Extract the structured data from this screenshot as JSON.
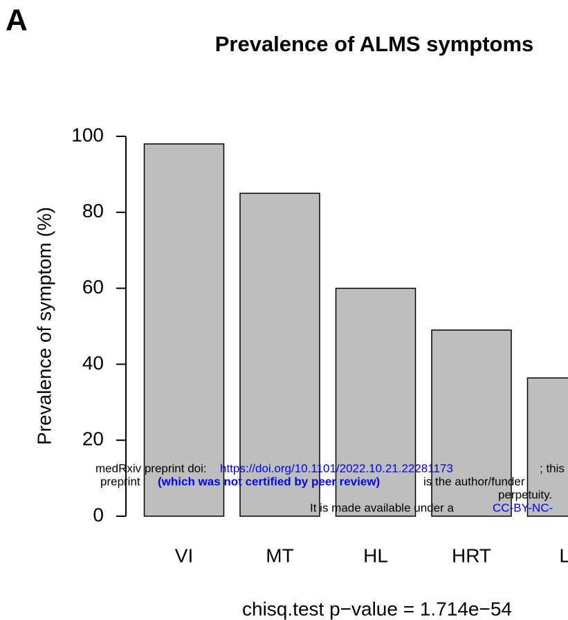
{
  "panel_label": "A",
  "chart_data": {
    "type": "bar",
    "title": "Prevalence of ALMS symptoms",
    "ylabel": "Prevalence of symptom (%)",
    "categories": [
      "VI",
      "MT",
      "HL",
      "HRT",
      "LI"
    ],
    "values": [
      98,
      85,
      60,
      49,
      36.4
    ],
    "color": "#bebebe",
    "ylim": [
      0,
      100
    ],
    "yticks": [
      0,
      20,
      40,
      60,
      80,
      100
    ],
    "annotation": "chisq.test p−value =  1.714e−54"
  },
  "watermark": {
    "line1": [
      "medRxiv preprint doi:",
      "https://doi.org/10.1101/2022.10.21.22281173",
      "; this"
    ],
    "line2": [
      "preprint",
      "(which was not certified by peer review)",
      "is the author/funder"
    ],
    "line3": "perpetuity.",
    "line4": [
      "It is made available under a",
      "CC-BY-NC-"
    ]
  }
}
